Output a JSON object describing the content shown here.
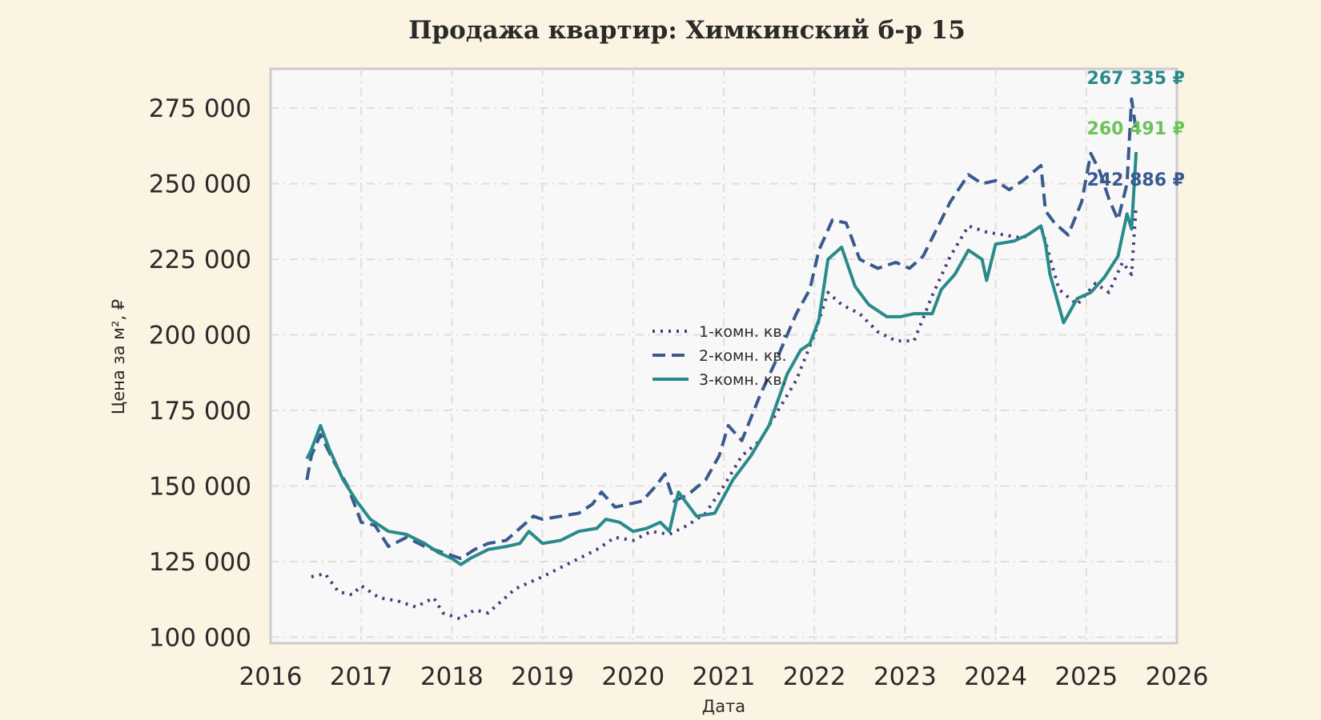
{
  "chart_data": {
    "type": "line",
    "title": "Продажа квартир: Химкинский б-р 15",
    "xlabel": "Дата",
    "ylabel": "Цена за м², ₽",
    "xlim": [
      2016,
      2026
    ],
    "ylim": [
      98000,
      288000
    ],
    "x_ticks": [
      "2016",
      "2017",
      "2018",
      "2019",
      "2020",
      "2021",
      "2022",
      "2023",
      "2024",
      "2025",
      "2026"
    ],
    "y_ticks": [
      {
        "value": 100000,
        "label": "100 000"
      },
      {
        "value": 125000,
        "label": "125 000"
      },
      {
        "value": 150000,
        "label": "150 000"
      },
      {
        "value": 175000,
        "label": "175 000"
      },
      {
        "value": 200000,
        "label": "200 000"
      },
      {
        "value": 225000,
        "label": "225 000"
      },
      {
        "value": 250000,
        "label": "250 000"
      },
      {
        "value": 275000,
        "label": "275 000"
      }
    ],
    "grid": true,
    "legend_position": "center",
    "series": [
      {
        "name": "1-комн. кв.",
        "color": "#4b3a7c",
        "style": "dotted",
        "end_label": "242 886 ₽",
        "end_label_color": "#3a5a8f",
        "x": [
          2016.45,
          2016.6,
          2016.75,
          2016.9,
          2017.0,
          2017.2,
          2017.4,
          2017.6,
          2017.8,
          2017.9,
          2018.0,
          2018.1,
          2018.25,
          2018.4,
          2018.55,
          2018.7,
          2018.85,
          2019.0,
          2019.2,
          2019.4,
          2019.6,
          2019.8,
          2020.0,
          2020.2,
          2020.4,
          2020.6,
          2020.8,
          2021.0,
          2021.2,
          2021.4,
          2021.6,
          2021.8,
          2022.0,
          2022.15,
          2022.3,
          2022.5,
          2022.7,
          2022.9,
          2023.1,
          2023.3,
          2023.5,
          2023.7,
          2023.9,
          2024.1,
          2024.3,
          2024.5,
          2024.7,
          2024.9,
          2025.1,
          2025.25,
          2025.4,
          2025.5,
          2025.55
        ],
        "y": [
          120000,
          121000,
          115000,
          114000,
          117000,
          113000,
          112000,
          110000,
          113000,
          108000,
          107000,
          106000,
          109000,
          108000,
          112000,
          116000,
          118000,
          120000,
          123000,
          126000,
          129000,
          133000,
          132000,
          135000,
          134000,
          137000,
          141000,
          150000,
          160000,
          165000,
          175000,
          185000,
          200000,
          214000,
          210000,
          207000,
          201000,
          198000,
          198000,
          213000,
          226000,
          236000,
          234000,
          233000,
          232000,
          236000,
          215000,
          210000,
          217000,
          214000,
          224000,
          220000,
          242886
        ]
      },
      {
        "name": "2-комн. кв.",
        "color": "#3a5a8f",
        "style": "dashed",
        "end_label": "267 335 ₽",
        "end_label_color": "#2a8a8a",
        "x": [
          2016.4,
          2016.45,
          2016.55,
          2016.7,
          2016.85,
          2017.0,
          2017.15,
          2017.3,
          2017.5,
          2017.7,
          2017.9,
          2018.0,
          2018.1,
          2018.25,
          2018.4,
          2018.6,
          2018.75,
          2018.9,
          2019.0,
          2019.2,
          2019.4,
          2019.55,
          2019.65,
          2019.8,
          2019.95,
          2020.1,
          2020.25,
          2020.35,
          2020.45,
          2020.6,
          2020.8,
          2020.95,
          2021.05,
          2021.2,
          2021.4,
          2021.6,
          2021.8,
          2021.95,
          2022.05,
          2022.2,
          2022.35,
          2022.5,
          2022.7,
          2022.9,
          2023.05,
          2023.2,
          2023.35,
          2023.5,
          2023.7,
          2023.85,
          2024.0,
          2024.15,
          2024.3,
          2024.5,
          2024.55,
          2024.65,
          2024.8,
          2024.95,
          2025.05,
          2025.15,
          2025.25,
          2025.35,
          2025.45,
          2025.5,
          2025.55
        ],
        "y": [
          152000,
          160000,
          167000,
          158000,
          150000,
          138000,
          137000,
          130000,
          133000,
          130000,
          128000,
          127000,
          126000,
          129000,
          131000,
          132000,
          136000,
          140000,
          139000,
          140000,
          141000,
          144000,
          148000,
          143000,
          144000,
          145000,
          150000,
          154000,
          145000,
          147000,
          152000,
          160000,
          170000,
          165000,
          180000,
          193000,
          207000,
          215000,
          228000,
          238000,
          237000,
          225000,
          222000,
          224000,
          222000,
          226000,
          235000,
          244000,
          253000,
          250000,
          251000,
          248000,
          251000,
          256000,
          241000,
          237000,
          233000,
          244000,
          260000,
          254000,
          245000,
          238000,
          250000,
          278000,
          267335
        ]
      },
      {
        "name": "3-комн. кв.",
        "color": "#2a8a8a",
        "style": "solid",
        "end_label": "260 491 ₽",
        "end_label_color": "#6cc25a",
        "x": [
          2016.4,
          2016.45,
          2016.55,
          2016.65,
          2016.8,
          2016.95,
          2017.1,
          2017.3,
          2017.5,
          2017.7,
          2017.85,
          2018.0,
          2018.1,
          2018.2,
          2018.4,
          2018.6,
          2018.75,
          2018.85,
          2019.0,
          2019.2,
          2019.4,
          2019.6,
          2019.7,
          2019.85,
          2020.0,
          2020.15,
          2020.3,
          2020.4,
          2020.5,
          2020.7,
          2020.9,
          2021.1,
          2021.3,
          2021.5,
          2021.7,
          2021.85,
          2021.95,
          2022.05,
          2022.15,
          2022.3,
          2022.45,
          2022.6,
          2022.8,
          2022.95,
          2023.1,
          2023.3,
          2023.4,
          2023.55,
          2023.7,
          2023.85,
          2023.9,
          2024.0,
          2024.2,
          2024.35,
          2024.5,
          2024.55,
          2024.6,
          2024.75,
          2024.9,
          2025.05,
          2025.2,
          2025.35,
          2025.45,
          2025.5,
          2025.55
        ],
        "y": [
          159000,
          162000,
          170000,
          162000,
          152000,
          145000,
          139000,
          135000,
          134000,
          131000,
          128000,
          126000,
          124000,
          126000,
          129000,
          130000,
          131000,
          135000,
          131000,
          132000,
          135000,
          136000,
          139000,
          138000,
          135000,
          136000,
          138000,
          135000,
          148000,
          140000,
          141000,
          152000,
          160000,
          170000,
          187000,
          195000,
          197000,
          205000,
          225000,
          229000,
          216000,
          210000,
          206000,
          206000,
          207000,
          207000,
          215000,
          220000,
          228000,
          225000,
          218000,
          230000,
          231000,
          233000,
          236000,
          230000,
          220000,
          204000,
          212000,
          214000,
          219000,
          226000,
          240000,
          235000,
          260491
        ]
      }
    ]
  }
}
